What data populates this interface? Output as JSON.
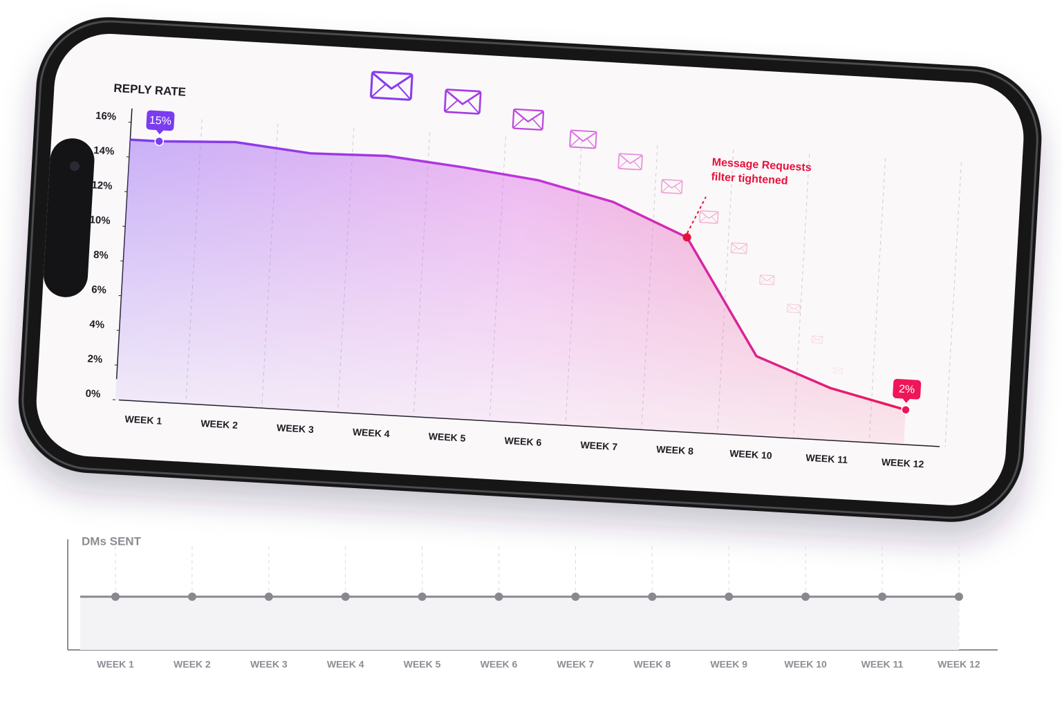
{
  "chart_data": [
    {
      "type": "line",
      "title": "REPLY RATE",
      "categories": [
        "WEEK 1",
        "WEEK 2",
        "WEEK 3",
        "WEEK 4",
        "WEEK 5",
        "WEEK 6",
        "WEEK 7",
        "WEEK 8",
        "WEEK 10",
        "WEEK 11",
        "WEEK 12"
      ],
      "values": [
        15,
        15.2,
        14.8,
        14.9,
        14.5,
        14,
        13,
        11.2,
        4.6,
        3,
        2
      ],
      "value_labels": [
        "15%",
        null,
        null,
        null,
        null,
        null,
        null,
        null,
        null,
        null,
        "2%"
      ],
      "color_start": "#7a3cf0",
      "color_end": "#ee1558",
      "ylim": [
        0,
        16
      ],
      "yticks": [
        {
          "value": 0,
          "label": "0%"
        },
        {
          "value": 2,
          "label": "2%"
        },
        {
          "value": 4,
          "label": "4%"
        },
        {
          "value": 6,
          "label": "6%"
        },
        {
          "value": 8,
          "label": "8%"
        },
        {
          "value": 10,
          "label": "10%"
        },
        {
          "value": 12,
          "label": "12%"
        },
        {
          "value": 14,
          "label": "14%"
        },
        {
          "value": 16,
          "label": "16%"
        }
      ],
      "annotation": {
        "lines": [
          "Message Requests",
          "filter tightened"
        ],
        "category": "WEEK 8",
        "color": "#e8103c"
      },
      "area": true
    },
    {
      "type": "line",
      "title": "DMs SENT",
      "categories": [
        "WEEK 1",
        "WEEK 2",
        "WEEK 3",
        "WEEK 4",
        "WEEK 5",
        "WEEK 6",
        "WEEK 7",
        "WEEK 8",
        "WEEK 9",
        "WEEK 10",
        "WEEK 11",
        "WEEK 12"
      ],
      "values": [
        55,
        55,
        55,
        55,
        55,
        55,
        55,
        55,
        55,
        55,
        55,
        55
      ],
      "color": "#8a8790",
      "ylim": [
        0,
        100
      ],
      "area": false
    }
  ]
}
